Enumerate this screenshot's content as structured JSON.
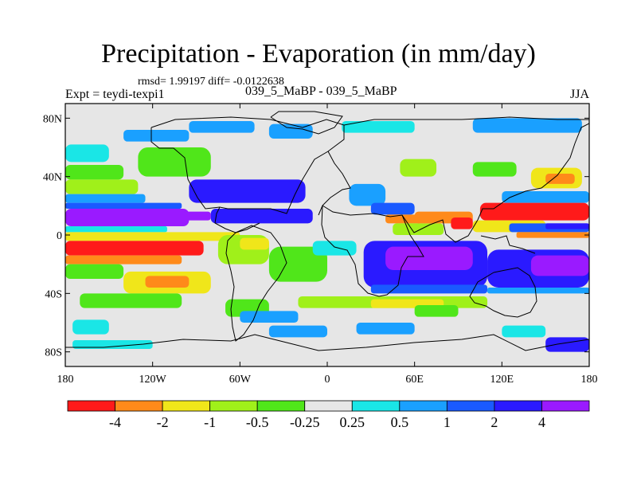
{
  "chart_data": {
    "type": "heatmap",
    "title": "Precipitation - Evaporation (in mm/day)",
    "stats": "rmsd= 1.99197 diff= -0.0122638",
    "experiment": "Expt = teydi-texpi1",
    "case_label": "039_5_MaBP - 039_5_MaBP",
    "season": "JJA",
    "x_range": [
      -180,
      180
    ],
    "y_range": [
      -90,
      90
    ],
    "x_ticks": [
      {
        "value": -180,
        "label": "180"
      },
      {
        "value": -120,
        "label": "120W"
      },
      {
        "value": -60,
        "label": "60W"
      },
      {
        "value": 0,
        "label": "0"
      },
      {
        "value": 60,
        "label": "60E"
      },
      {
        "value": 120,
        "label": "120E"
      },
      {
        "value": 180,
        "label": "180"
      }
    ],
    "y_ticks": [
      {
        "value": 80,
        "label": "80N"
      },
      {
        "value": 40,
        "label": "40N"
      },
      {
        "value": 0,
        "label": "0"
      },
      {
        "value": -40,
        "label": "40S"
      },
      {
        "value": -80,
        "label": "80S"
      }
    ],
    "colorbar": {
      "colors": [
        "#ff1a1a",
        "#ff8a1a",
        "#f0e61a",
        "#a0f01a",
        "#50e61a",
        "#e6e6e6",
        "#1ae6e6",
        "#1aa0ff",
        "#1a5aff",
        "#2a1aff",
        "#9a1aff"
      ],
      "levels": [
        -4,
        -2,
        -1,
        -0.5,
        -0.25,
        0.25,
        0.5,
        1,
        2,
        4
      ],
      "level_labels": [
        "-4",
        "-2",
        "-1",
        "-0.5",
        "-0.25",
        "0.25",
        "0.5",
        "1",
        "2",
        "4"
      ]
    },
    "field_regions": [
      {
        "lon": [
          -180,
          180
        ],
        "lat": [
          -90,
          90
        ],
        "value": 0
      },
      {
        "lon": [
          -180,
          -150
        ],
        "lat": [
          50,
          62
        ],
        "value": 0.3
      },
      {
        "lon": [
          -140,
          -95
        ],
        "lat": [
          64,
          72
        ],
        "value": 0.5
      },
      {
        "lon": [
          -95,
          -50
        ],
        "lat": [
          70,
          78
        ],
        "value": 0.8
      },
      {
        "lon": [
          -40,
          -10
        ],
        "lat": [
          66,
          76
        ],
        "value": 0.5
      },
      {
        "lon": [
          10,
          60
        ],
        "lat": [
          70,
          78
        ],
        "value": 0.4
      },
      {
        "lon": [
          100,
          175
        ],
        "lat": [
          70,
          80
        ],
        "value": 0.7
      },
      {
        "lon": [
          -180,
          -140
        ],
        "lat": [
          38,
          48
        ],
        "value": -0.4
      },
      {
        "lon": [
          -180,
          -130
        ],
        "lat": [
          28,
          38
        ],
        "value": -0.7
      },
      {
        "lon": [
          -180,
          -125
        ],
        "lat": [
          22,
          28
        ],
        "value": 0.7
      },
      {
        "lon": [
          -180,
          -100
        ],
        "lat": [
          18,
          22
        ],
        "value": 1.5
      },
      {
        "lon": [
          -180,
          -95
        ],
        "lat": [
          6,
          18
        ],
        "value": 4.5
      },
      {
        "lon": [
          -160,
          -80
        ],
        "lat": [
          10,
          16
        ],
        "value": 5
      },
      {
        "lon": [
          -180,
          -110
        ],
        "lat": [
          2,
          6
        ],
        "value": 0.4
      },
      {
        "lon": [
          -180,
          -60
        ],
        "lat": [
          -4,
          2
        ],
        "value": -1.5
      },
      {
        "lon": [
          -180,
          -85
        ],
        "lat": [
          -14,
          -4
        ],
        "value": -5
      },
      {
        "lon": [
          -180,
          -100
        ],
        "lat": [
          -20,
          -14
        ],
        "value": -2.5
      },
      {
        "lon": [
          -180,
          -140
        ],
        "lat": [
          -30,
          -20
        ],
        "value": -0.4
      },
      {
        "lon": [
          -140,
          -80
        ],
        "lat": [
          -40,
          -25
        ],
        "value": -1.5
      },
      {
        "lon": [
          -125,
          -95
        ],
        "lat": [
          -36,
          -28
        ],
        "value": -2.5
      },
      {
        "lon": [
          -170,
          -100
        ],
        "lat": [
          -50,
          -40
        ],
        "value": -0.4
      },
      {
        "lon": [
          -70,
          -40
        ],
        "lat": [
          -56,
          -44
        ],
        "value": -0.4
      },
      {
        "lon": [
          -175,
          -150
        ],
        "lat": [
          -68,
          -58
        ],
        "value": 0.4
      },
      {
        "lon": [
          -175,
          -120
        ],
        "lat": [
          -78,
          -72
        ],
        "value": 0.4
      },
      {
        "lon": [
          -95,
          -15
        ],
        "lat": [
          22,
          38
        ],
        "value": 2.5
      },
      {
        "lon": [
          -80,
          -10
        ],
        "lat": [
          8,
          18
        ],
        "value": 3
      },
      {
        "lon": [
          -130,
          -80
        ],
        "lat": [
          40,
          60
        ],
        "value": -0.35
      },
      {
        "lon": [
          -75,
          -40
        ],
        "lat": [
          -20,
          0
        ],
        "value": -0.7
      },
      {
        "lon": [
          -60,
          -40
        ],
        "lat": [
          -10,
          -2
        ],
        "value": -1.5
      },
      {
        "lon": [
          -40,
          0
        ],
        "lat": [
          -32,
          -8
        ],
        "value": -0.4
      },
      {
        "lon": [
          -10,
          20
        ],
        "lat": [
          -14,
          -4
        ],
        "value": 0.4
      },
      {
        "lon": [
          15,
          40
        ],
        "lat": [
          20,
          35
        ],
        "value": 0.6
      },
      {
        "lon": [
          30,
          60
        ],
        "lat": [
          14,
          22
        ],
        "value": 1.5
      },
      {
        "lon": [
          40,
          65
        ],
        "lat": [
          8,
          14
        ],
        "value": -3
      },
      {
        "lon": [
          45,
          80
        ],
        "lat": [
          0,
          8
        ],
        "value": -0.7
      },
      {
        "lon": [
          60,
          100
        ],
        "lat": [
          8,
          16
        ],
        "value": -3
      },
      {
        "lon": [
          85,
          100
        ],
        "lat": [
          4,
          12
        ],
        "value": -5
      },
      {
        "lon": [
          50,
          75
        ],
        "lat": [
          40,
          52
        ],
        "value": -0.8
      },
      {
        "lon": [
          100,
          130
        ],
        "lat": [
          40,
          50
        ],
        "value": -0.4
      },
      {
        "lon": [
          140,
          175
        ],
        "lat": [
          32,
          46
        ],
        "value": -1.5
      },
      {
        "lon": [
          150,
          170
        ],
        "lat": [
          35,
          42
        ],
        "value": -2.5
      },
      {
        "lon": [
          120,
          180
        ],
        "lat": [
          22,
          30
        ],
        "value": 0.6
      },
      {
        "lon": [
          105,
          180
        ],
        "lat": [
          10,
          22
        ],
        "value": -5
      },
      {
        "lon": [
          100,
          150
        ],
        "lat": [
          2,
          10
        ],
        "value": -1.5
      },
      {
        "lon": [
          125,
          180
        ],
        "lat": [
          2,
          8
        ],
        "value": 1.5
      },
      {
        "lon": [
          150,
          180
        ],
        "lat": [
          4,
          8
        ],
        "value": 3
      },
      {
        "lon": [
          130,
          180
        ],
        "lat": [
          -2,
          2
        ],
        "value": -2.5
      },
      {
        "lon": [
          25,
          110
        ],
        "lat": [
          -36,
          -4
        ],
        "value": 2.5
      },
      {
        "lon": [
          40,
          100
        ],
        "lat": [
          -24,
          -8
        ],
        "value": 4.5
      },
      {
        "lon": [
          110,
          180
        ],
        "lat": [
          -36,
          -10
        ],
        "value": 2.5
      },
      {
        "lon": [
          140,
          180
        ],
        "lat": [
          -28,
          -14
        ],
        "value": 4.5
      },
      {
        "lon": [
          30,
          110
        ],
        "lat": [
          -40,
          -34
        ],
        "value": 1.5
      },
      {
        "lon": [
          110,
          180
        ],
        "lat": [
          -40,
          -36
        ],
        "value": 0.7
      },
      {
        "lon": [
          -20,
          110
        ],
        "lat": [
          -50,
          -42
        ],
        "value": -0.7
      },
      {
        "lon": [
          30,
          80
        ],
        "lat": [
          -50,
          -44
        ],
        "value": -1.5
      },
      {
        "lon": [
          60,
          90
        ],
        "lat": [
          -56,
          -48
        ],
        "value": -0.4
      },
      {
        "lon": [
          -60,
          -20
        ],
        "lat": [
          -60,
          -52
        ],
        "value": 0.5
      },
      {
        "lon": [
          -40,
          0
        ],
        "lat": [
          -70,
          -62
        ],
        "value": 0.5
      },
      {
        "lon": [
          20,
          60
        ],
        "lat": [
          -68,
          -60
        ],
        "value": 0.6
      },
      {
        "lon": [
          120,
          150
        ],
        "lat": [
          -70,
          -62
        ],
        "value": 0.4
      },
      {
        "lon": [
          150,
          180
        ],
        "lat": [
          -80,
          -70
        ],
        "value": 2.5
      }
    ],
    "land_outline_note": "thin black coastline boundaries"
  }
}
